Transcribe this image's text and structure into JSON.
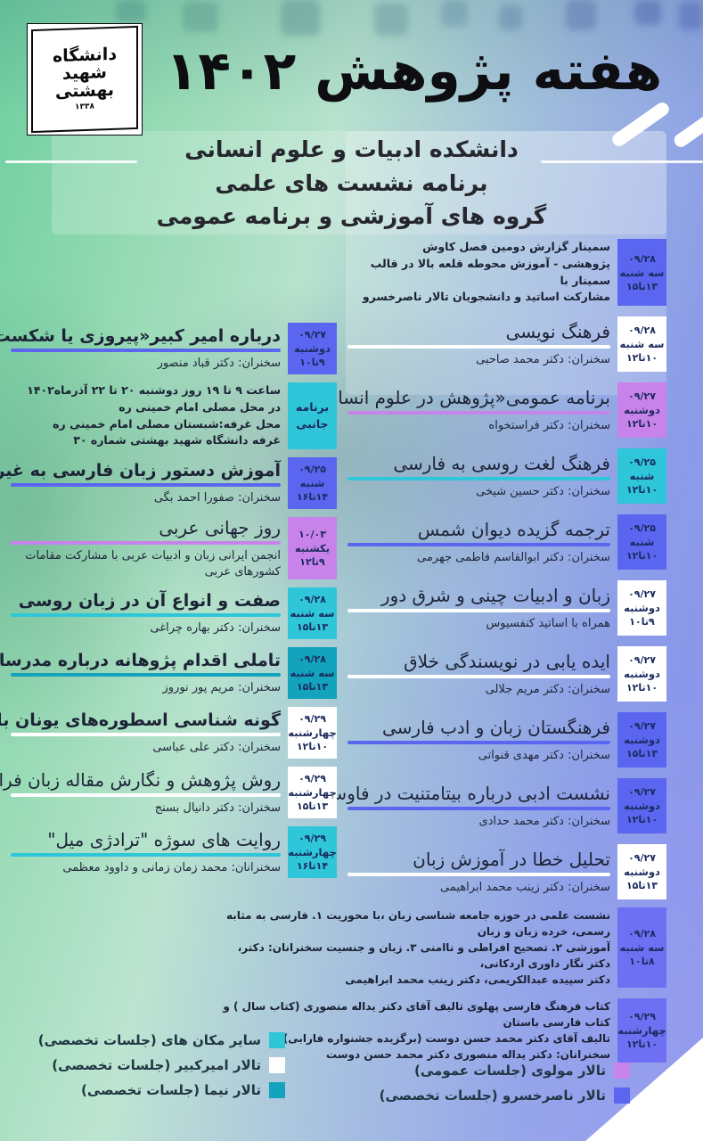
{
  "header": {
    "logo": {
      "word1": "دانشگاه",
      "word2": "شهید",
      "word3": "بهشتی",
      "year": "۱۳۳۸"
    },
    "title": "هفته پژوهش ۱۴۰۲",
    "subtitle_lines": [
      "دانشکده ادبیات و علوم انسانی",
      "برنامه نشست های علمی",
      "گروه های آموزشی و برنامه عمومی"
    ]
  },
  "venue_colors": {
    "other": "#2ec6d8",
    "amirkabir": "#ffffff",
    "nima": "#13a3bd",
    "molavi": "#c783ea",
    "naserkhosro": "#5a66f0",
    "naserkhosro_alt": "#6e6ff2"
  },
  "columns": {
    "right": [
      {
        "lines": [
          "سمینار گزارش دومین فصل کاوش",
          "پژوهشی - آموزش محوطه قلعه بالا در قالب سمینار با",
          "مشارکت اساتید و دانشجویان تالار ناصرخسرو"
        ],
        "venue": "naserkhosro",
        "badge": {
          "date": "۰۹/۲۸",
          "day": "سه شنبه",
          "time": "۱۳تا۱۵"
        }
      },
      {
        "title": "فرهنگ نویسی",
        "speaker": "سخنران: دکتر محمد صاحبی",
        "underline": "amirkabir",
        "venue": "amirkabir",
        "badge": {
          "date": "۰۹/۲۸",
          "day": "سه شنبه",
          "time": "۱۰تا۱۲"
        }
      },
      {
        "title": "برنامه عمومی«پژوهش در علوم انسانی»",
        "speaker": "سخنران:  دکتر فراستخواه",
        "underline": "molavi",
        "venue": "molavi",
        "badge": {
          "date": "۰۹/۲۷",
          "day": "دوشنبه",
          "time": "۱۰تا۱۲"
        }
      },
      {
        "title": "فرهنگ لغت روسی به فارسی",
        "speaker": "سخنران: دکتر حسین شیخی",
        "underline": "other",
        "venue": "other",
        "badge": {
          "date": "۰۹/۲۵",
          "day": "شنبه",
          "time": "۱۰تا۱۲"
        }
      },
      {
        "title": "ترجمه گزیده دیوان شمس",
        "speaker": "سخنران: دکتر ابوالقاسم فاطمی جهرمی",
        "underline": "naserkhosro",
        "venue": "naserkhosro",
        "badge": {
          "date": "۰۹/۲۵",
          "day": "شنبه",
          "time": "۱۰تا۱۲"
        }
      },
      {
        "title": "زبان و ادبیات چینی و شرق دور",
        "speaker": "همراه با اساتید کنفسیوس",
        "underline": "amirkabir",
        "venue": "amirkabir",
        "badge": {
          "date": "۰۹/۲۷",
          "day": "دوشنبه",
          "time": "۹تا۱۰"
        }
      },
      {
        "title": "ایده یابی در نویسندگی خلاق",
        "speaker": "سخنران: دکتر مریم جلالی",
        "underline": "amirkabir",
        "venue": "amirkabir",
        "badge": {
          "date": "۰۹/۲۷",
          "day": "دوشنبه",
          "time": "۱۰تا۱۲"
        }
      },
      {
        "title": "فرهنگستان زبان و ادب فارسی",
        "speaker": "سخنران: دکتر مهدی قنواتی",
        "underline": "naserkhosro",
        "venue": "naserkhosro",
        "badge": {
          "date": "۰۹/۲۷",
          "day": "دوشنبه",
          "time": "۱۳تا۱۵"
        }
      },
      {
        "title": "نشست ادبی درباره بیتامتنیت در فاوست",
        "speaker": "سخنران: دکتر محمد حدادی",
        "underline": "naserkhosro",
        "venue": "naserkhosro",
        "badge": {
          "date": "۰۹/۲۷",
          "day": "دوشنبه",
          "time": "۱۰تا۱۲"
        }
      },
      {
        "title": "تحلیل خطا در آموزش زبان",
        "speaker": "سخنران: دکتر زینب محمد ابراهیمی",
        "underline": "amirkabir",
        "venue": "amirkabir",
        "badge": {
          "date": "۰۹/۲۷",
          "day": "دوشنبه",
          "time": "۱۳تا۱۵"
        }
      }
    ],
    "left": [
      {
        "title": "درباره امیر کبیر«پیروزی یا شکست قاجاریه»",
        "bold": true,
        "speaker": "سخنران: دکتر قباد منصور",
        "underline": "naserkhosro",
        "venue": "naserkhosro",
        "badge": {
          "date": "۰۹/۲۷",
          "day": "دوشنبه",
          "time": "۹تا۱۰"
        }
      },
      {
        "lines": [
          "ساعت ۹ تا ۱۹ روز دوشنبه ۲۰ تا ۲۲ آذرماه۱۴۰۲",
          "در محل مصلی امام خمینی ره",
          "محل غرفه:شبستان مصلی امام خمینی ره",
          "غرفه دانشگاه شهید بهشتی شماره ۳۰"
        ],
        "venue": "other",
        "badge": {
          "label": "برنامه جانبی"
        }
      },
      {
        "title": "آموزش دستور زبان فارسی به غیر فارسی زبانان",
        "bold": true,
        "speaker": "سخنران: صفورا احمد بگی",
        "underline": "naserkhosro",
        "venue": "naserkhosro",
        "badge": {
          "date": "۰۹/۲۵",
          "day": "شنبه",
          "time": "۱۴تا۱۶"
        }
      },
      {
        "title": "روز جهانی عربی",
        "speaker": "انجمن ایرانی زبان و ادبیات عربی با مشارکت مقامات کشورهای عربی",
        "underline": "molavi",
        "venue": "molavi",
        "badge": {
          "date": "۱۰/۰۳",
          "day": "یکشنبه",
          "time": "۹تا۱۲"
        }
      },
      {
        "title": "صفت و انواع آن در زبان روسی",
        "bold": true,
        "speaker": "سخنران: دکتر بهاره چراغی",
        "underline": "other",
        "venue": "other",
        "badge": {
          "date": "۰۹/۲۸",
          "day": "سه شنبه",
          "time": "۱۳تا۱۵"
        }
      },
      {
        "title": "تاملی اقدام پژوهانه درباره مدرسان آزفا",
        "bold": true,
        "speaker": "سخنران: مریم پور نوروز",
        "underline": "nima",
        "venue": "nima",
        "badge": {
          "date": "۰۹/۲۸",
          "day": "سه شنبه",
          "time": "۱۳تا۱۵"
        }
      },
      {
        "title": "گونه شناسی اسطوره‌های یونان  باستان",
        "bold": true,
        "speaker": "سخنران: دکتر علی عباسی",
        "underline": "amirkabir",
        "venue": "amirkabir",
        "badge": {
          "date": "۰۹/۲۹",
          "day": "چهارشنبه",
          "time": "۱۰تا۱۲"
        }
      },
      {
        "title": "روش پژوهش و نگارش مقاله زبان فرانسه",
        "speaker": "سخنران: دکتر دانیال بسنج",
        "underline": "amirkabir",
        "venue": "amirkabir",
        "badge": {
          "date": "۰۹/۲۹",
          "day": "چهارشنبه",
          "time": "۱۳تا۱۵"
        }
      },
      {
        "title": "روایت های سوژه \"ترادژی میل\"",
        "speaker": "سخنرانان: محمد زمان زمانی و داوود معظمی",
        "underline": "other",
        "venue": "other",
        "badge": {
          "date": "۰۹/۲۹",
          "day": "چهارشنبه",
          "time": "۱۴تا۱۶"
        }
      }
    ],
    "bottom": [
      {
        "lines": [
          "نشست علمی در حوزه جامعه شناسی زبان ،با محوریت  ۱. فارسی به مثابه رسمی، خرده زبان و زبان",
          "آموزشی ۲. تصحیح افراطی و ناامنی  ۳. زبان و جنسیت سخنرانان: دکتر، دکتر نگار داوری اردکانی،",
          "دکتر سپیده عبدالکریمی، دکتر زینب محمد ابراهیمی"
        ],
        "venue": "naserkhosro_alt",
        "badge": {
          "date": "۰۹/۲۸",
          "day": "سه شنبه",
          "time": "۸تا۱۰"
        }
      },
      {
        "lines": [
          "کتاب فرهنگ فارسی پهلوی تالیف آقای دکتر یداله منصوری (کتاب سال ) و کتاب فارسی باستان",
          "تالیف آقای دکتر محمد حسن دوست (برگزیده جشنواره فارابی)",
          "سخنرانان: دکتر یداله منصوری دکتر محمد حسن دوست"
        ],
        "venue": "naserkhosro_alt",
        "badge": {
          "date": "۰۹/۲۹",
          "day": "چهارشنبه",
          "time": "۱۰تا۱۲"
        }
      }
    ]
  },
  "legend": {
    "left": [
      {
        "label": "سایر مکان های (جلسات تخصصی)",
        "venue": "other"
      },
      {
        "label": "تالار امیرکبیر (جلسات تخصصی)",
        "venue": "amirkabir"
      },
      {
        "label": "تالار نیما (جلسات تخصصی)",
        "venue": "nima"
      }
    ],
    "right": [
      {
        "label": "تالار مولوی (جلسات عمومی)",
        "venue": "molavi"
      },
      {
        "label": "تالار ناصرخسرو (جلسات تخصصی)",
        "venue": "naserkhosro"
      }
    ]
  }
}
